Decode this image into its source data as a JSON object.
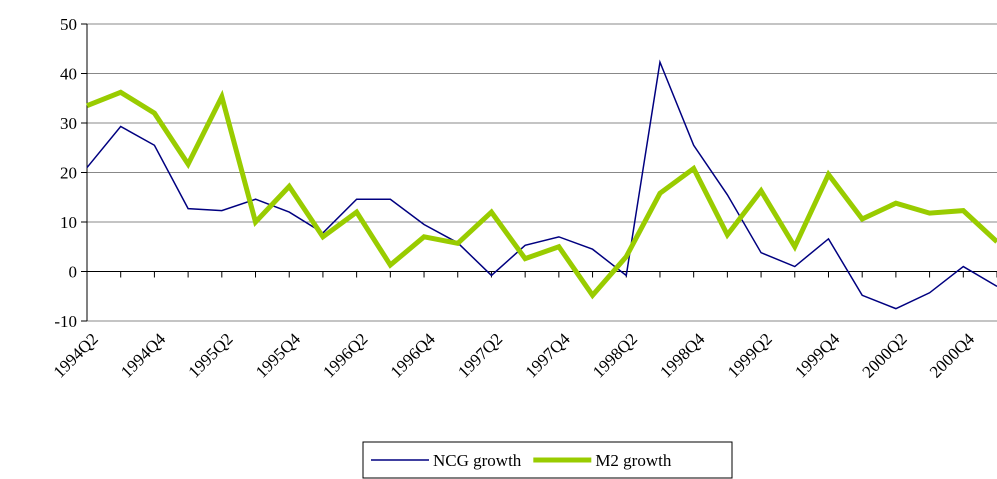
{
  "chart_data": {
    "type": "line",
    "categories": [
      "1994Q2",
      null,
      "1994Q4",
      null,
      "1995Q2",
      null,
      "1995Q4",
      null,
      "1996Q2",
      null,
      "1996Q4",
      null,
      "1997Q2",
      null,
      "1997Q4",
      null,
      "1998Q2",
      null,
      "1998Q4",
      null,
      "1999Q2",
      null,
      "1999Q4",
      null,
      "2000Q2",
      null,
      "2000Q4",
      null
    ],
    "series": [
      {
        "name": "NCG growth",
        "color": "#000080",
        "width": 1.5,
        "values": [
          21,
          29.3,
          25.5,
          12.7,
          12.3,
          14.6,
          12,
          7.8,
          14.6,
          14.6,
          9.5,
          5.8,
          -0.8,
          5.3,
          7,
          4.5,
          -0.8,
          42.3,
          25.5,
          15.5,
          3.8,
          1,
          6.6,
          -4.8,
          -7.5,
          -4.3,
          1,
          -3
        ]
      },
      {
        "name": "M2 growth",
        "color": "#99cc00",
        "width": 5,
        "values": [
          33.5,
          36.2,
          32,
          21.7,
          35.3,
          10,
          17.2,
          7,
          12,
          1.3,
          7,
          5.7,
          12,
          2.6,
          5,
          -4.8,
          3,
          15.8,
          20.8,
          7.4,
          16.3,
          5,
          19.6,
          10.6,
          13.8,
          11.8,
          12.3,
          6
        ]
      }
    ],
    "ylim": [
      -10,
      50
    ],
    "yticks": [
      -10,
      0,
      10,
      20,
      30,
      40,
      50
    ],
    "grid": true,
    "legend": "bottom"
  }
}
